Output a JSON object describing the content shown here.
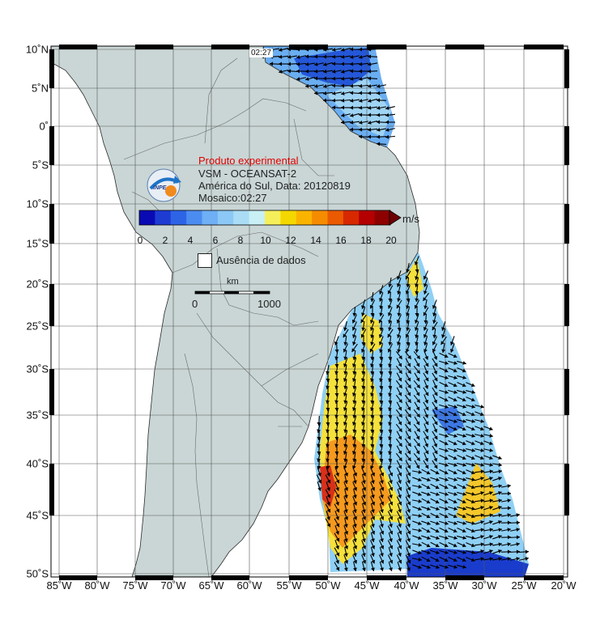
{
  "map": {
    "region": "América do Sul",
    "time_stamp": "02:27"
  },
  "axes": {
    "lat_labels": [
      "10˚N",
      "5˚N",
      "0˚",
      "5˚S",
      "10˚S",
      "15˚S",
      "20˚S",
      "25˚S",
      "30˚S",
      "35˚S",
      "40˚S",
      "45˚S",
      "50˚S"
    ],
    "lon_labels": [
      "85˚W",
      "80˚W",
      "75˚W",
      "70˚W",
      "65˚W",
      "60˚W",
      "55˚W",
      "50˚W",
      "45˚W",
      "40˚W",
      "35˚W",
      "30˚W",
      "25˚W",
      "20˚W"
    ]
  },
  "legend": {
    "title": "Produto experimental",
    "line1": "VSM - OCEANSAT-2",
    "line2": "América do Sul, Data: 20120819",
    "line3": "Mosaico:02:27",
    "logo_text": "INPE",
    "colorbar_unit": "m/s",
    "colorbar_ticks": [
      "0",
      "2",
      "4",
      "6",
      "8",
      "10",
      "12",
      "14",
      "16",
      "18",
      "20"
    ],
    "no_data_label": "Ausência de dados",
    "scale_unit": "km",
    "scale_start": "0",
    "scale_end": "1000"
  },
  "colors": {
    "land": "#c9d6d5",
    "ocean_no_data": "#ffffff",
    "title_red": "#e00000",
    "colorbar": [
      "#0a0ab4",
      "#1e3cd2",
      "#2d64e6",
      "#4b8cf0",
      "#6eaff5",
      "#8cc8f5",
      "#aadcf5",
      "#c8f0f5",
      "#f5f05a",
      "#f5d700",
      "#fab400",
      "#f58c00",
      "#eb5a00",
      "#d72800",
      "#b40000",
      "#8c0000"
    ]
  }
}
